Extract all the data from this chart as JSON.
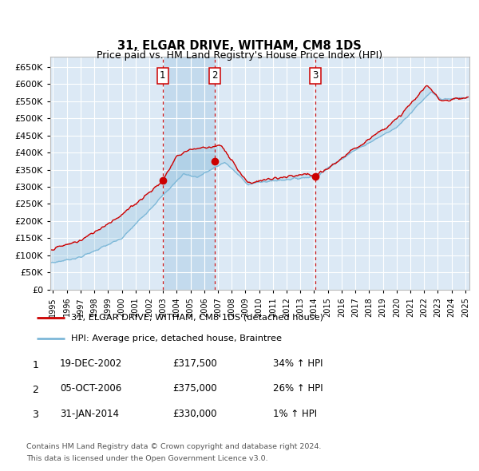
{
  "title": "31, ELGAR DRIVE, WITHAM, CM8 1DS",
  "subtitle": "Price paid vs. HM Land Registry's House Price Index (HPI)",
  "background_color": "#dce9f5",
  "plot_bg": "#dce9f5",
  "hpi_line_color": "#7db8d8",
  "price_line_color": "#cc0000",
  "sale_dates": [
    2002.97,
    2006.76,
    2014.08
  ],
  "sale_prices": [
    317500,
    375000,
    330000
  ],
  "sale_labels": [
    "1",
    "2",
    "3"
  ],
  "sale_info": [
    {
      "num": "1",
      "date": "19-DEC-2002",
      "price": "£317,500",
      "hpi": "34% ↑ HPI"
    },
    {
      "num": "2",
      "date": "05-OCT-2006",
      "price": "£375,000",
      "hpi": "26% ↑ HPI"
    },
    {
      "num": "3",
      "date": "31-JAN-2014",
      "price": "£330,000",
      "hpi": "1% ↑ HPI"
    }
  ],
  "legend_line1": "31, ELGAR DRIVE, WITHAM, CM8 1DS (detached house)",
  "legend_line2": "HPI: Average price, detached house, Braintree",
  "footer1": "Contains HM Land Registry data © Crown copyright and database right 2024.",
  "footer2": "This data is licensed under the Open Government Licence v3.0.",
  "ylim": [
    0,
    680000
  ],
  "xlim": [
    1994.8,
    2025.3
  ],
  "ytick_step": 50000,
  "xtick_start": 1995,
  "xtick_end": 2025
}
